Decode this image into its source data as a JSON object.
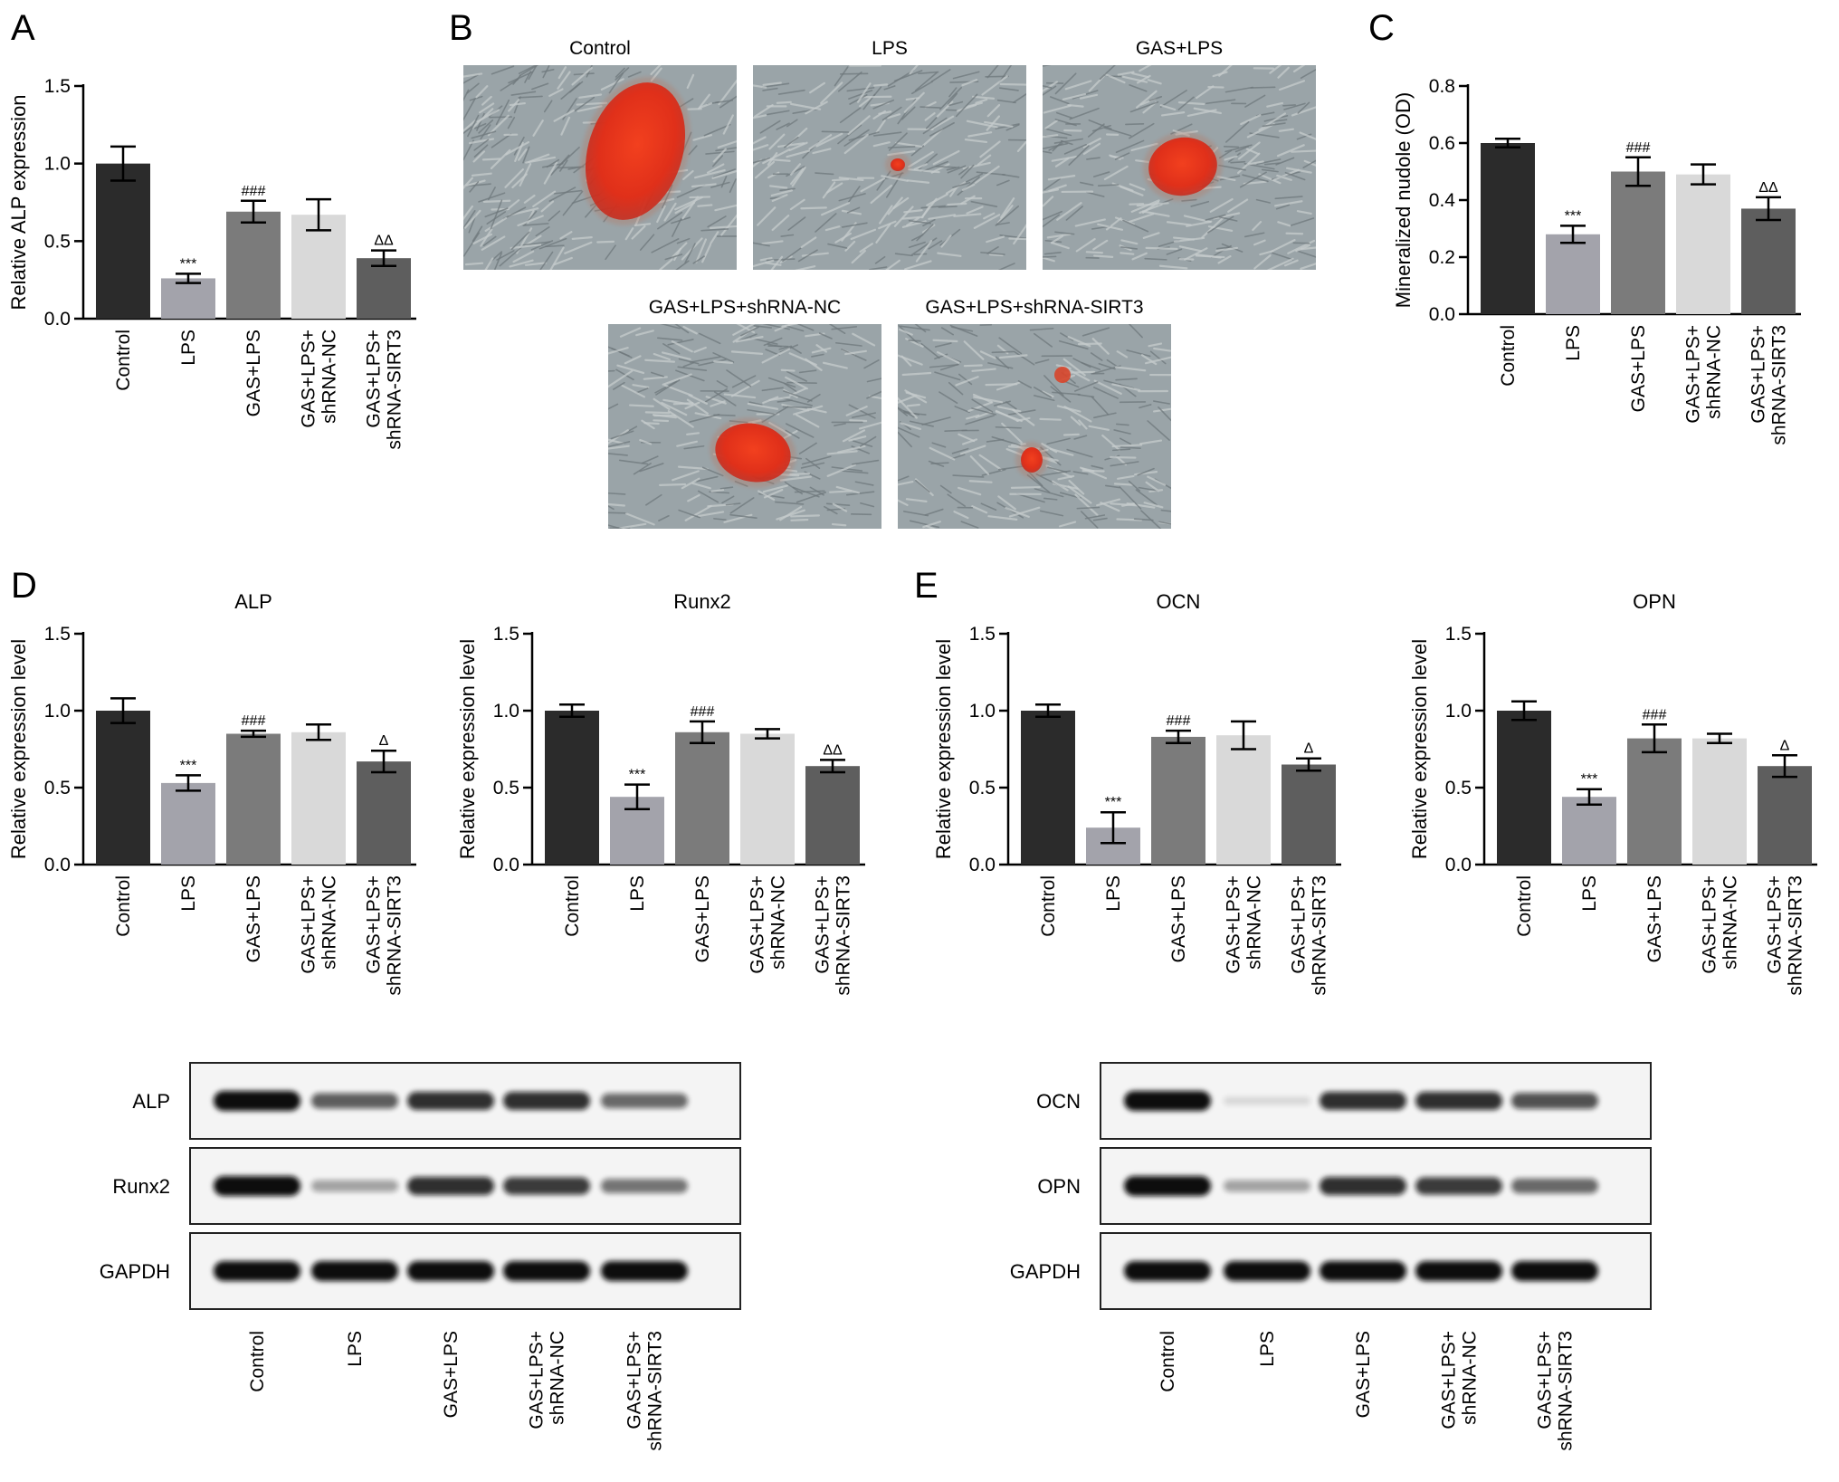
{
  "colors": {
    "bars": [
      "#2b2b2b",
      "#a3a3ab",
      "#7b7b7b",
      "#d9d9d9",
      "#5e5e5e"
    ],
    "stain": "#e8321b",
    "microscopy_bg": "#9aa4a8",
    "blot_band": "#111111"
  },
  "panel_labels": {
    "a": "A",
    "b": "B",
    "c": "C",
    "d": "D",
    "e": "E"
  },
  "chart_data": [
    {
      "id": "A",
      "type": "bar",
      "title": "",
      "ylabel": "Relative ALP expression",
      "ylim": [
        0,
        1.5
      ],
      "yticks": [
        "0.0",
        "0.5",
        "1.0",
        "1.5"
      ],
      "categories": [
        [
          "Control"
        ],
        [
          "LPS"
        ],
        [
          "GAS+LPS"
        ],
        [
          "GAS+LPS+",
          "shRNA-NC"
        ],
        [
          "GAS+LPS+",
          "shRNA-SIRT3"
        ]
      ],
      "values": [
        1.0,
        0.26,
        0.69,
        0.67,
        0.39
      ],
      "errors": [
        0.11,
        0.03,
        0.07,
        0.1,
        0.05
      ],
      "annotations": [
        "",
        "***",
        "###",
        "",
        "ΔΔ"
      ]
    },
    {
      "id": "C",
      "type": "bar",
      "title": "",
      "ylabel": "Mineralized nudole (OD)",
      "ylim": [
        0,
        0.8
      ],
      "yticks": [
        "0.0",
        "0.2",
        "0.4",
        "0.6",
        "0.8"
      ],
      "categories": [
        [
          "Control"
        ],
        [
          "LPS"
        ],
        [
          "GAS+LPS"
        ],
        [
          "GAS+LPS+",
          "shRNA-NC"
        ],
        [
          "GAS+LPS+",
          "shRNA-SIRT3"
        ]
      ],
      "values": [
        0.6,
        0.28,
        0.5,
        0.49,
        0.37
      ],
      "errors": [
        0.015,
        0.03,
        0.05,
        0.035,
        0.04
      ],
      "annotations": [
        "",
        "***",
        "###",
        "",
        "ΔΔ"
      ]
    },
    {
      "id": "D-ALP",
      "type": "bar",
      "title": "ALP",
      "ylabel": "Relative expression level",
      "ylim": [
        0,
        1.5
      ],
      "yticks": [
        "0.0",
        "0.5",
        "1.0",
        "1.5"
      ],
      "categories": [
        [
          "Control"
        ],
        [
          "LPS"
        ],
        [
          "GAS+LPS"
        ],
        [
          "GAS+LPS+",
          "shRNA-NC"
        ],
        [
          "GAS+LPS+",
          "shRNA-SIRT3"
        ]
      ],
      "values": [
        1.0,
        0.53,
        0.85,
        0.86,
        0.67
      ],
      "errors": [
        0.08,
        0.05,
        0.02,
        0.05,
        0.07
      ],
      "annotations": [
        "",
        "***",
        "###",
        "",
        "Δ"
      ]
    },
    {
      "id": "D-Runx2",
      "type": "bar",
      "title": "Runx2",
      "ylabel": "Relative expression level",
      "ylim": [
        0,
        1.5
      ],
      "yticks": [
        "0.0",
        "0.5",
        "1.0",
        "1.5"
      ],
      "categories": [
        [
          "Control"
        ],
        [
          "LPS"
        ],
        [
          "GAS+LPS"
        ],
        [
          "GAS+LPS+",
          "shRNA-NC"
        ],
        [
          "GAS+LPS+",
          "shRNA-SIRT3"
        ]
      ],
      "values": [
        1.0,
        0.44,
        0.86,
        0.85,
        0.64
      ],
      "errors": [
        0.04,
        0.08,
        0.07,
        0.03,
        0.04
      ],
      "annotations": [
        "",
        "***",
        "###",
        "",
        "ΔΔ"
      ]
    },
    {
      "id": "E-OCN",
      "type": "bar",
      "title": "OCN",
      "ylabel": "Relative expression level",
      "ylim": [
        0,
        1.5
      ],
      "yticks": [
        "0.0",
        "0.5",
        "1.0",
        "1.5"
      ],
      "categories": [
        [
          "Control"
        ],
        [
          "LPS"
        ],
        [
          "GAS+LPS"
        ],
        [
          "GAS+LPS+",
          "shRNA-NC"
        ],
        [
          "GAS+LPS+",
          "shRNA-SIRT3"
        ]
      ],
      "values": [
        1.0,
        0.24,
        0.83,
        0.84,
        0.65
      ],
      "errors": [
        0.04,
        0.1,
        0.04,
        0.09,
        0.04
      ],
      "annotations": [
        "",
        "***",
        "###",
        "",
        "Δ"
      ]
    },
    {
      "id": "E-OPN",
      "type": "bar",
      "title": "OPN",
      "ylabel": "Relative expression level",
      "ylim": [
        0,
        1.5
      ],
      "yticks": [
        "0.0",
        "0.5",
        "1.0",
        "1.5"
      ],
      "categories": [
        [
          "Control"
        ],
        [
          "LPS"
        ],
        [
          "GAS+LPS"
        ],
        [
          "GAS+LPS+",
          "shRNA-NC"
        ],
        [
          "GAS+LPS+",
          "shRNA-SIRT3"
        ]
      ],
      "values": [
        1.0,
        0.44,
        0.82,
        0.82,
        0.64
      ],
      "errors": [
        0.06,
        0.05,
        0.09,
        0.03,
        0.07
      ],
      "annotations": [
        "",
        "***",
        "###",
        "",
        "Δ"
      ]
    }
  ],
  "micrographs": [
    {
      "label": "Control",
      "nodule": "large"
    },
    {
      "label": "LPS",
      "nodule": "tiny"
    },
    {
      "label": "GAS+LPS",
      "nodule": "medium"
    },
    {
      "label": "GAS+LPS+shRNA-NC",
      "nodule": "medium"
    },
    {
      "label": "GAS+LPS+shRNA-SIRT3",
      "nodule": "small"
    }
  ],
  "blots": [
    {
      "id": "D",
      "rows": [
        {
          "name": "ALP",
          "intensities": [
            1.0,
            0.65,
            0.85,
            0.85,
            0.6
          ]
        },
        {
          "name": "Runx2",
          "intensities": [
            1.0,
            0.35,
            0.85,
            0.8,
            0.55
          ]
        },
        {
          "name": "GAPDH",
          "intensities": [
            1.0,
            1.0,
            1.0,
            1.0,
            1.0
          ]
        }
      ],
      "lanes": [
        [
          "Control"
        ],
        [
          "LPS"
        ],
        [
          "GAS+LPS"
        ],
        [
          "GAS+LPS+",
          "shRNA-NC"
        ],
        [
          "GAS+LPS+",
          "shRNA-SIRT3"
        ]
      ]
    },
    {
      "id": "E",
      "rows": [
        {
          "name": "OCN",
          "intensities": [
            1.0,
            0.08,
            0.85,
            0.85,
            0.7
          ]
        },
        {
          "name": "OPN",
          "intensities": [
            1.0,
            0.35,
            0.85,
            0.8,
            0.6
          ]
        },
        {
          "name": "GAPDH",
          "intensities": [
            1.0,
            1.0,
            1.0,
            1.0,
            1.0
          ]
        }
      ],
      "lanes": [
        [
          "Control"
        ],
        [
          "LPS"
        ],
        [
          "GAS+LPS"
        ],
        [
          "GAS+LPS+",
          "shRNA-NC"
        ],
        [
          "GAS+LPS+",
          "shRNA-SIRT3"
        ]
      ]
    }
  ]
}
